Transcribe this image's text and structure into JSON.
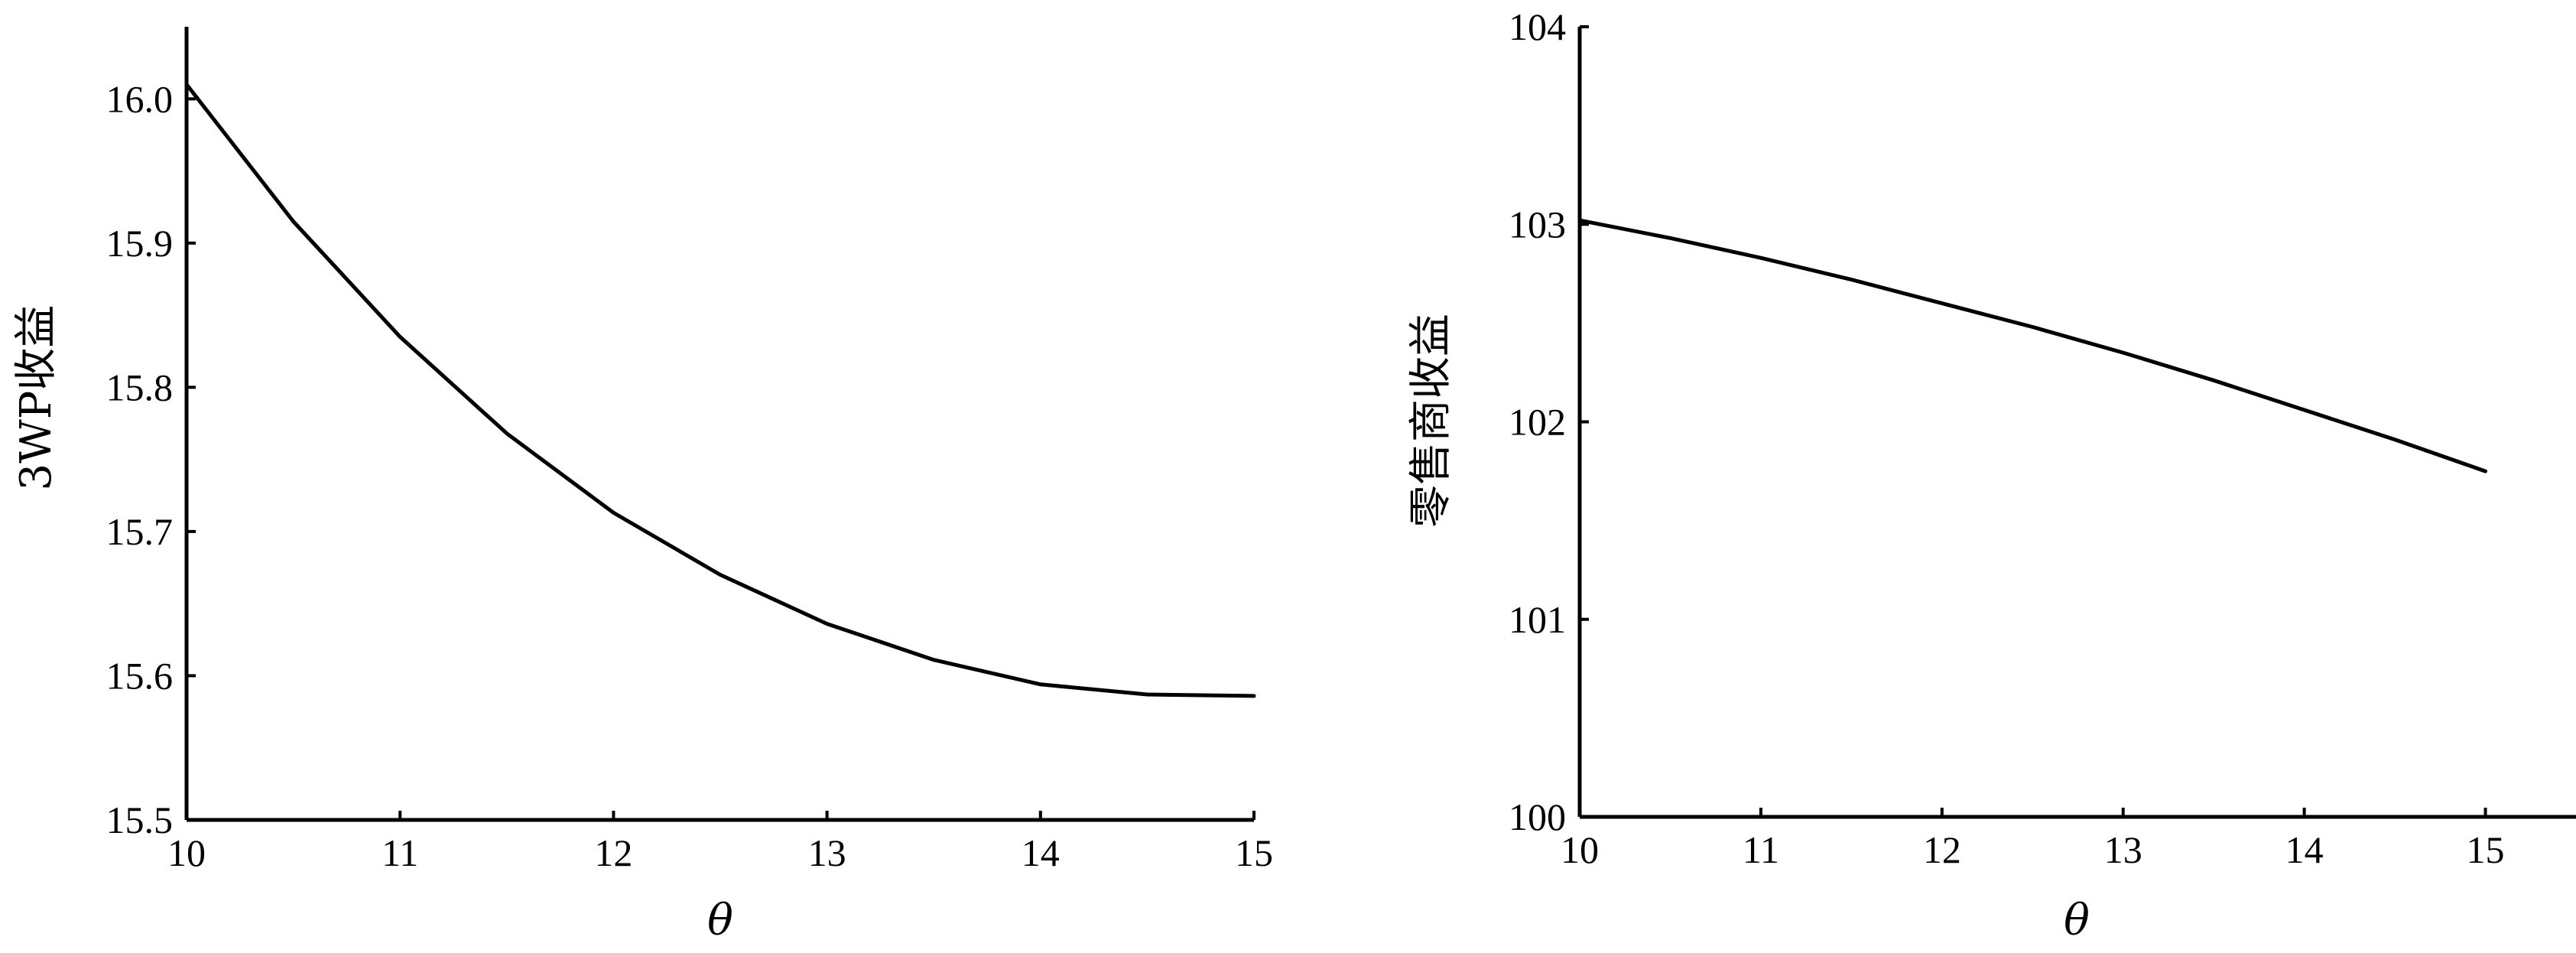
{
  "colors": {
    "axis": "#000000",
    "line": "#000000",
    "background": "#ffffff"
  },
  "chart_data": [
    {
      "type": "line",
      "xlabel": "θ",
      "ylabel": "3WP收益",
      "xlim": [
        10,
        15
      ],
      "ylim": [
        15.5,
        16.05
      ],
      "x_ticks": [
        "10",
        "11",
        "12",
        "13",
        "14",
        "15"
      ],
      "y_ticks": [
        "15.5",
        "15.6",
        "15.7",
        "15.8",
        "15.9",
        "16.0"
      ],
      "grid": false,
      "series": [
        {
          "x": [
            10,
            10.5,
            11,
            11.5,
            12,
            12.5,
            13,
            13.5,
            14,
            14.5,
            15
          ],
          "values": [
            16.01,
            15.915,
            15.835,
            15.768,
            15.713,
            15.67,
            15.636,
            15.611,
            15.594,
            15.587,
            15.586
          ]
        }
      ]
    },
    {
      "type": "line",
      "xlabel": "θ",
      "ylabel": "零售商收益",
      "xlim": [
        10,
        15.5
      ],
      "ylim": [
        100,
        104
      ],
      "x_ticks": [
        "10",
        "11",
        "12",
        "13",
        "14",
        "15"
      ],
      "y_ticks": [
        "100",
        "101",
        "102",
        "103",
        "104"
      ],
      "grid": false,
      "series": [
        {
          "x": [
            10,
            10.5,
            11,
            11.5,
            12,
            12.5,
            13,
            13.5,
            14,
            14.5,
            15
          ],
          "values": [
            103.02,
            102.93,
            102.83,
            102.72,
            102.6,
            102.48,
            102.35,
            102.21,
            102.06,
            101.91,
            101.75
          ]
        }
      ]
    }
  ]
}
